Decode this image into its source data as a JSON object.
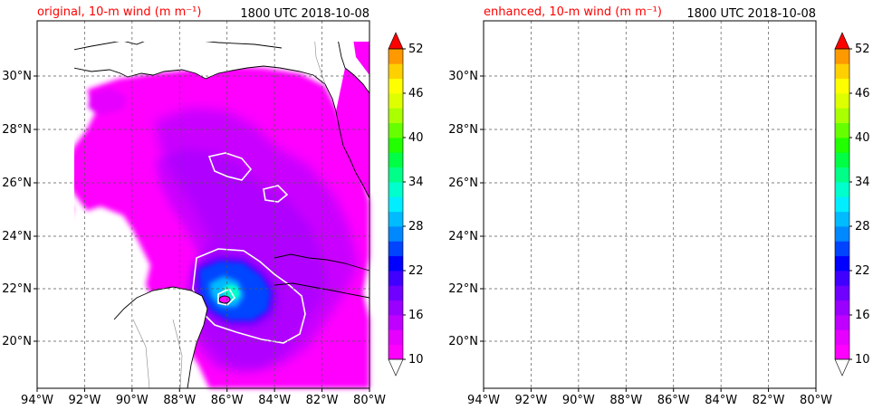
{
  "colors": {
    "title_red": "#ff0000",
    "contour": "#ffffff",
    "land_line": "#000000",
    "grid": "#555555"
  },
  "panels": [
    {
      "id": "original",
      "title_left": "original, 10-m wind (m m⁻¹)",
      "title_right": "1800 UTC 2018-10-08"
    },
    {
      "id": "enhanced",
      "title_left": "enhanced, 10-m wind (m m⁻¹)",
      "title_right": "1800 UTC 2018-10-08"
    }
  ],
  "axes": {
    "lon_labels": [
      "94°W",
      "92°W",
      "90°W",
      "88°W",
      "86°W",
      "84°W",
      "82°W",
      "80°W"
    ],
    "lat_labels": [
      "30°N",
      "28°N",
      "26°N",
      "24°N",
      "22°N",
      "20°N"
    ],
    "lon_range": [
      -94,
      -80
    ],
    "lat_range": [
      18,
      32
    ]
  },
  "colorbar": {
    "tick_labels": [
      "52",
      "46",
      "40",
      "34",
      "28",
      "22",
      "16",
      "10"
    ],
    "min": 10,
    "max": 52,
    "step": 2,
    "extend": "both",
    "colors": [
      "#ff00ff",
      "#e600ff",
      "#c000ff",
      "#9900ff",
      "#7000ff",
      "#4000ff",
      "#0000ff",
      "#0044ff",
      "#0088ff",
      "#00bbff",
      "#00eeff",
      "#00ffcc",
      "#00ff88",
      "#00ff44",
      "#22ff00",
      "#66ff00",
      "#aaff00",
      "#ddff00",
      "#ffff00",
      "#ffd000",
      "#ff9900",
      "#ff5500",
      "#ff0000"
    ]
  }
}
